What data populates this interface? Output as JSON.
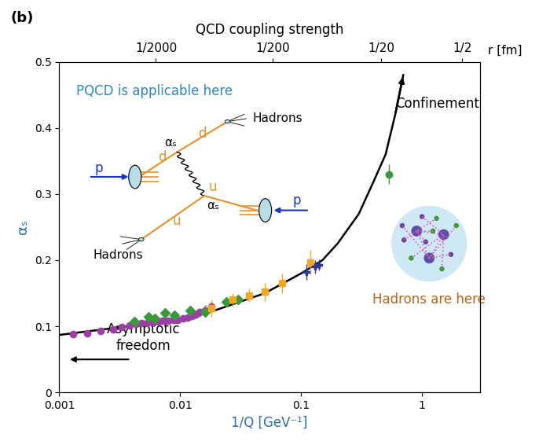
{
  "chart_data": {
    "type": "scatter",
    "panel_label": "(b)",
    "x_label": "1/Q [GeV⁻¹]",
    "y_label": "αₛ",
    "log": "x",
    "xlim": [
      0.001,
      3
    ],
    "xticks": [
      0.001,
      0.01,
      0.1,
      1
    ],
    "ylim": [
      0,
      0.5
    ],
    "yticks": [
      0,
      0.1,
      0.2,
      0.3,
      0.4,
      0.5
    ],
    "top_axis": {
      "title": "QCD coupling strength",
      "unit": "r [fm]",
      "ticks": [
        {
          "value": 0.0063,
          "label": "1/2000"
        },
        {
          "value": 0.058,
          "label": "1/200"
        },
        {
          "value": 0.46,
          "label": "1/20"
        },
        {
          "value": 2.15,
          "label": "1/2"
        }
      ]
    },
    "series": [
      {
        "type": "scatter",
        "marker": "circle",
        "color": "#9b3fa6",
        "x": [
          0.0013,
          0.0017,
          0.0022,
          0.0028,
          0.0033,
          0.0038,
          0.0043,
          0.0048,
          0.0053,
          0.006,
          0.0066,
          0.0072,
          0.008,
          0.0088,
          0.0095,
          0.0105,
          0.0115,
          0.0125,
          0.0135,
          0.0145,
          0.016,
          0.018
        ],
        "values": [
          0.088,
          0.09,
          0.093,
          0.096,
          0.099,
          0.101,
          0.104,
          0.105,
          0.105,
          0.106,
          0.107,
          0.108,
          0.109,
          0.11,
          0.11,
          0.112,
          0.113,
          0.116,
          0.118,
          0.121,
          0.124,
          0.13
        ],
        "errors": [
          0.002,
          0.002,
          0.003,
          0.003,
          0.003,
          0.003,
          0.003,
          0.003,
          0.003,
          0.003,
          0.003,
          0.003,
          0.003,
          0.003,
          0.004,
          0.004,
          0.004,
          0.005,
          0.006,
          0.007,
          0.008,
          0.008
        ]
      },
      {
        "type": "scatter",
        "marker": "diamond",
        "color": "#3a9a3a",
        "x": [
          0.0042,
          0.0055,
          0.0062,
          0.0075,
          0.009,
          0.012,
          0.016,
          0.024,
          0.03
        ],
        "values": [
          0.107,
          0.115,
          0.112,
          0.12,
          0.117,
          0.124,
          0.122,
          0.137,
          0.14
        ],
        "errors": [
          0.004,
          0.004,
          0.004,
          0.005,
          0.005,
          0.005,
          0.005,
          0.006,
          0.006
        ]
      },
      {
        "type": "scatter",
        "marker": "square",
        "color": "#f5a623",
        "x": [
          0.018,
          0.027,
          0.037,
          0.05,
          0.07,
          0.12
        ],
        "values": [
          0.127,
          0.14,
          0.147,
          0.152,
          0.165,
          0.197
        ],
        "errors": [
          0.012,
          0.01,
          0.01,
          0.014,
          0.015,
          0.018
        ]
      },
      {
        "type": "scatter",
        "marker": "plus",
        "color": "#2b3990",
        "x": [
          0.11,
          0.13,
          0.14
        ],
        "values": [
          0.182,
          0.19,
          0.193
        ],
        "errors": [
          0.012,
          0.01,
          0.008
        ]
      },
      {
        "type": "scatter",
        "marker": "circle",
        "color": "#3a9a3a",
        "x": [
          0.53
        ],
        "values": [
          0.33
        ],
        "errors": [
          0.015
        ]
      },
      {
        "type": "line",
        "line_style": "solid",
        "color": "#000000",
        "x": [
          0.001,
          0.002,
          0.005,
          0.01,
          0.02,
          0.05,
          0.1,
          0.15,
          0.2,
          0.3,
          0.4,
          0.5,
          0.6,
          0.7
        ],
        "values": [
          0.087,
          0.094,
          0.103,
          0.112,
          0.125,
          0.15,
          0.18,
          0.2,
          0.225,
          0.27,
          0.32,
          0.36,
          0.42,
          0.48
        ]
      }
    ],
    "annotations": {
      "pqcd": "PQCD is applicable here",
      "confinement": "Confinement",
      "hadrons_here": "Hadrons are here",
      "asymptotic": "Asymptotic\nfreedom"
    },
    "diagram": {
      "proton": "p",
      "quark_d": "d",
      "quark_u": "u",
      "coupling": "αₛ",
      "jets": "Hadrons"
    }
  }
}
